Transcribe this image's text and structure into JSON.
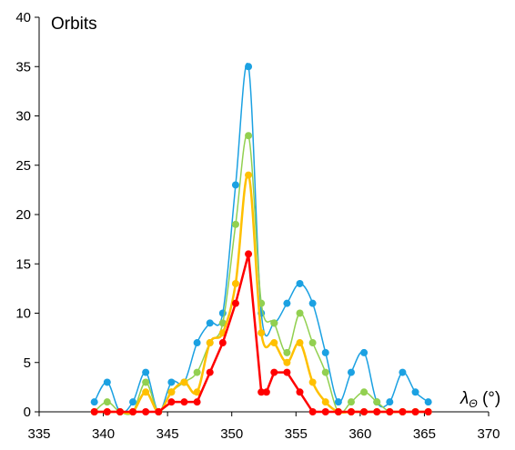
{
  "chart_data": {
    "type": "line",
    "title": "",
    "ylabel": "Orbits",
    "xlabel": {
      "symbol": "λ",
      "subscript": "Θ",
      "unit": " (°)"
    },
    "xlim": [
      335,
      370
    ],
    "ylim": [
      0,
      40
    ],
    "xticks": [
      335,
      340,
      345,
      350,
      355,
      360,
      365,
      370
    ],
    "yticks": [
      0,
      5,
      10,
      15,
      20,
      25,
      30,
      35,
      40
    ],
    "grid": false,
    "x": [
      339.3,
      340.3,
      341.3,
      342.3,
      343.3,
      344.3,
      345.3,
      346.3,
      347.3,
      348.3,
      349.3,
      350.3,
      351.3,
      352.3,
      353.3,
      354.3,
      355.3,
      356.3,
      357.3,
      358.3,
      359.3,
      360.3,
      361.3,
      362.3,
      363.3,
      364.3,
      365.3
    ],
    "series": [
      {
        "color": "#1BA1E2",
        "line_width": 1.5,
        "values": [
          1,
          3,
          0,
          1,
          4,
          0,
          3,
          3,
          7,
          9,
          10,
          23,
          35,
          10,
          9,
          11,
          13,
          11,
          6,
          1,
          4,
          6,
          1,
          1,
          4,
          2,
          1
        ]
      },
      {
        "color": "#92D050",
        "line_width": 1.5,
        "values": [
          0,
          1,
          0,
          0,
          3,
          0,
          2,
          3,
          4,
          7,
          9,
          19,
          28,
          11,
          9,
          6,
          10,
          7,
          4,
          0,
          1,
          2,
          1,
          0,
          0,
          0,
          0
        ]
      },
      {
        "color": "#FFC000",
        "line_width": 2.5,
        "values": [
          0,
          0,
          0,
          0,
          2,
          0,
          2,
          3,
          2,
          7,
          8,
          13,
          24,
          8,
          7,
          5,
          7,
          3,
          1,
          0,
          0,
          0,
          0,
          0,
          0,
          0,
          0
        ]
      },
      {
        "color": "#FF0000",
        "line_width": 2.5,
        "smooth": false,
        "x": [
          339.3,
          340.3,
          341.3,
          342.3,
          343.3,
          344.3,
          345.3,
          346.3,
          347.3,
          348.3,
          349.3,
          350.3,
          351.3,
          352.3,
          352.7,
          353.3,
          354.3,
          355.3,
          356.3,
          357.3,
          358.3,
          359.3,
          360.3,
          361.3,
          362.3,
          363.3,
          364.3,
          365.3
        ],
        "values": [
          0,
          0,
          0,
          0,
          0,
          0,
          1,
          1,
          1,
          4,
          7,
          11,
          16,
          2,
          2,
          4,
          4,
          2,
          0,
          0,
          0,
          0,
          0,
          0,
          0,
          0,
          0,
          0
        ]
      }
    ]
  }
}
